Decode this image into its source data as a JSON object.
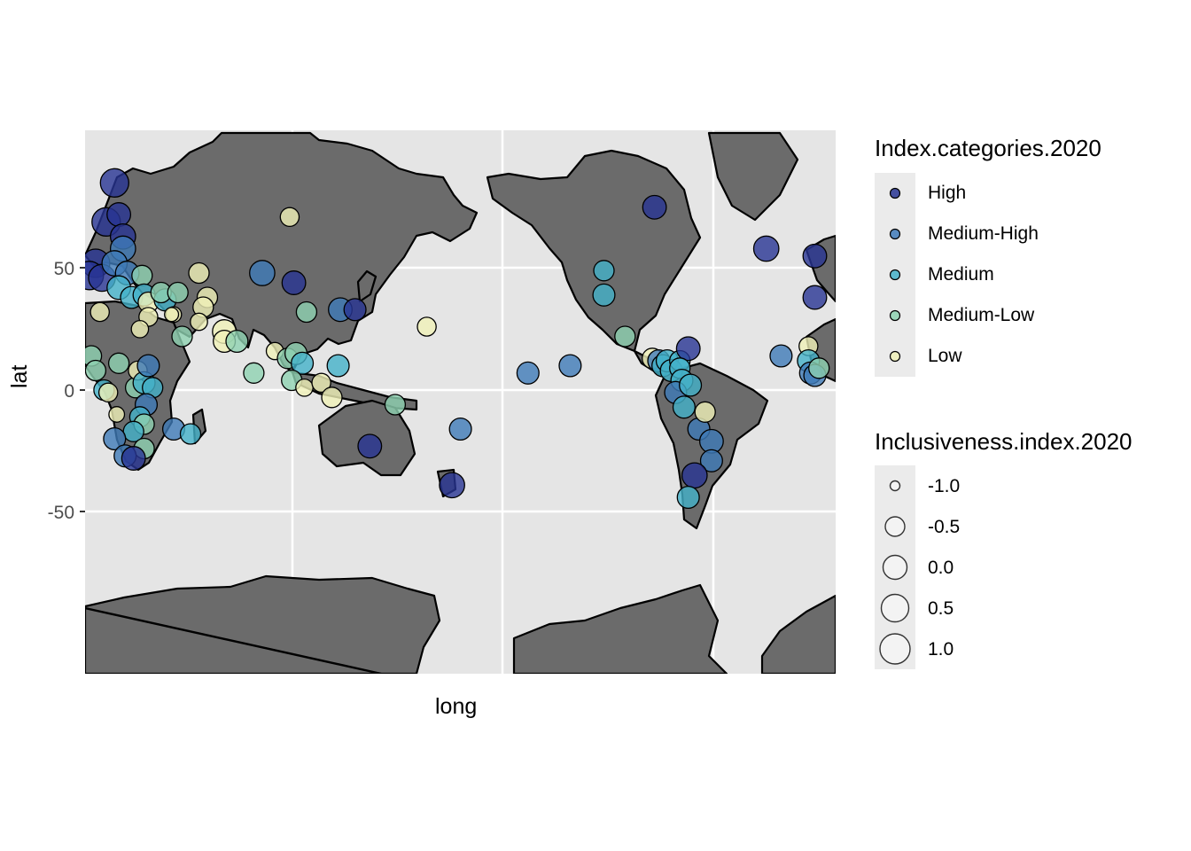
{
  "axes": {
    "x_label": "long",
    "y_label": "lat",
    "y_ticks": [
      "50",
      "0",
      "-50"
    ]
  },
  "colors": {
    "panel": "#e5e5e5",
    "gridline": "#ffffff",
    "land": "#6b6b6b",
    "border": "#000000",
    "High": "#283593",
    "Medium-High": "#3f7ab8",
    "Medium": "#44b2c9",
    "Medium-Low": "#8ed2b2",
    "Low": "#f0f1b8"
  },
  "legend_category": {
    "title": "Index.categories.2020",
    "items": [
      "High",
      "Medium-High",
      "Medium",
      "Medium-Low",
      "Low"
    ]
  },
  "legend_size": {
    "title": "Inclusiveness.index.2020",
    "items": [
      "-1.0",
      "-0.5",
      "0.0",
      "0.5",
      "1.0"
    ]
  },
  "points": [
    {
      "lon": 14,
      "lat": 85,
      "cat": "High",
      "size": 1.0
    },
    {
      "lon": 10,
      "lat": 69,
      "cat": "High",
      "size": 1.0
    },
    {
      "lon": 16,
      "lat": 72,
      "cat": "High",
      "size": 0.7
    },
    {
      "lon": 18,
      "lat": 63,
      "cat": "High",
      "size": 0.8
    },
    {
      "lon": 5,
      "lat": 52,
      "cat": "High",
      "size": 1.0
    },
    {
      "lon": 2,
      "lat": 47,
      "cat": "High",
      "size": 1.0
    },
    {
      "lon": 8,
      "lat": 46,
      "cat": "High",
      "size": 0.9
    },
    {
      "lon": 18,
      "lat": 58,
      "cat": "Medium-High",
      "size": 0.8
    },
    {
      "lon": 14,
      "lat": 52,
      "cat": "Medium-High",
      "size": 0.8
    },
    {
      "lon": 20,
      "lat": 48,
      "cat": "Medium-High",
      "size": 0.7
    },
    {
      "lon": 16,
      "lat": 42,
      "cat": "Medium",
      "size": 0.7
    },
    {
      "lon": 22,
      "lat": 38,
      "cat": "Medium",
      "size": 0.6
    },
    {
      "lon": 27,
      "lat": 47,
      "cat": "Medium-Low",
      "size": 0.5
    },
    {
      "lon": 28,
      "lat": 39,
      "cat": "Medium",
      "size": 0.6
    },
    {
      "lon": 30,
      "lat": 36,
      "cat": "Low",
      "size": 0.5
    },
    {
      "lon": 30,
      "lat": 30,
      "cat": "Low",
      "size": 0.4
    },
    {
      "lon": 26,
      "lat": 25,
      "cat": "Low",
      "size": 0.3
    },
    {
      "lon": 7,
      "lat": 32,
      "cat": "Low",
      "size": 0.4
    },
    {
      "lon": 38,
      "lat": 37,
      "cat": "Medium",
      "size": 0.6
    },
    {
      "lon": 36,
      "lat": 40,
      "cat": "Medium-Low",
      "size": 0.5
    },
    {
      "lon": 44,
      "lat": 40,
      "cat": "Medium-Low",
      "size": 0.5
    },
    {
      "lon": 42,
      "lat": 31,
      "cat": "Low",
      "size": 0.2
    },
    {
      "lon": 46,
      "lat": 22,
      "cat": "Medium-Low",
      "size": 0.5
    },
    {
      "lon": 41,
      "lat": 31,
      "cat": "Low",
      "size": 0.1
    },
    {
      "lon": 54,
      "lat": 48,
      "cat": "Low",
      "size": 0.5
    },
    {
      "lon": 58,
      "lat": 38,
      "cat": "Low",
      "size": 0.5
    },
    {
      "lon": 56,
      "lat": 34,
      "cat": "Low",
      "size": 0.5
    },
    {
      "lon": 54,
      "lat": 28,
      "cat": "Low",
      "size": 0.3
    },
    {
      "lon": 66,
      "lat": 24,
      "cat": "Low",
      "size": 0.7
    },
    {
      "lon": 66,
      "lat": 20,
      "cat": "Low",
      "size": 0.6
    },
    {
      "lon": 72,
      "lat": 20,
      "cat": "Medium-Low",
      "size": 0.6
    },
    {
      "lon": 80,
      "lat": 7,
      "cat": "Medium-Low",
      "size": 0.5
    },
    {
      "lon": 84,
      "lat": 48,
      "cat": "Medium-High",
      "size": 0.8
    },
    {
      "lon": 99,
      "lat": 44,
      "cat": "High",
      "size": 0.7
    },
    {
      "lon": 105,
      "lat": 32,
      "cat": "Medium-Low",
      "size": 0.5
    },
    {
      "lon": 97,
      "lat": 71,
      "cat": "Low",
      "size": 0.4
    },
    {
      "lon": 90,
      "lat": 16,
      "cat": "Low",
      "size": 0.3
    },
    {
      "lon": 96,
      "lat": 13,
      "cat": "Medium-Low",
      "size": 0.5
    },
    {
      "lon": 100,
      "lat": 15,
      "cat": "Medium-Low",
      "size": 0.6
    },
    {
      "lon": 103,
      "lat": 11,
      "cat": "Medium",
      "size": 0.6
    },
    {
      "lon": 98,
      "lat": 4,
      "cat": "Medium-Low",
      "size": 0.5
    },
    {
      "lon": 104,
      "lat": 1,
      "cat": "Low",
      "size": 0.3
    },
    {
      "lon": 112,
      "lat": 3,
      "cat": "Low",
      "size": 0.4
    },
    {
      "lon": 117,
      "lat": -3,
      "cat": "Low",
      "size": 0.5
    },
    {
      "lon": 120,
      "lat": 10,
      "cat": "Medium",
      "size": 0.6
    },
    {
      "lon": 121,
      "lat": 33,
      "cat": "Medium-High",
      "size": 0.7
    },
    {
      "lon": 128,
      "lat": 33,
      "cat": "High",
      "size": 0.6
    },
    {
      "lon": 135,
      "lat": -23,
      "cat": "High",
      "size": 0.7
    },
    {
      "lon": 147,
      "lat": -6,
      "cat": "Medium-Low",
      "size": 0.5
    },
    {
      "lon": 162,
      "lat": 26,
      "cat": "Low",
      "size": 0.4
    },
    {
      "lon": 174,
      "lat": -39,
      "cat": "High",
      "size": 0.8
    },
    {
      "lon": 178,
      "lat": -16,
      "cat": "Medium-High",
      "size": 0.6
    },
    {
      "lon": 210,
      "lat": 7,
      "cat": "Medium-High",
      "size": 0.6
    },
    {
      "lon": 230,
      "lat": 10,
      "cat": "Medium-High",
      "size": 0.6
    },
    {
      "lon": 246,
      "lat": 49,
      "cat": "Medium",
      "size": 0.5
    },
    {
      "lon": 246,
      "lat": 39,
      "cat": "Medium",
      "size": 0.6
    },
    {
      "lon": 256,
      "lat": 22,
      "cat": "Medium-Low",
      "size": 0.5
    },
    {
      "lon": 270,
      "lat": 75,
      "cat": "High",
      "size": 0.7
    },
    {
      "lon": 269,
      "lat": 13,
      "cat": "Low",
      "size": 0.5
    },
    {
      "lon": 272,
      "lat": 12,
      "cat": "Medium-High",
      "size": 0.6
    },
    {
      "lon": 274,
      "lat": 10,
      "cat": "Medium",
      "size": 0.6
    },
    {
      "lon": 276,
      "lat": 12,
      "cat": "Medium",
      "size": 0.6
    },
    {
      "lon": 278,
      "lat": 8,
      "cat": "Medium",
      "size": 0.6
    },
    {
      "lon": 282,
      "lat": 12,
      "cat": "Medium",
      "size": 0.5
    },
    {
      "lon": 286,
      "lat": 17,
      "cat": "High",
      "size": 0.7
    },
    {
      "lon": 282,
      "lat": 9,
      "cat": "Medium",
      "size": 0.5
    },
    {
      "lon": 283,
      "lat": 4,
      "cat": "Medium",
      "size": 0.6
    },
    {
      "lon": 280,
      "lat": -1,
      "cat": "Medium-High",
      "size": 0.6
    },
    {
      "lon": 284,
      "lat": -7,
      "cat": "Medium",
      "size": 0.6
    },
    {
      "lon": 287,
      "lat": 2,
      "cat": "Medium",
      "size": 0.6
    },
    {
      "lon": 291,
      "lat": -16,
      "cat": "Medium-High",
      "size": 0.6
    },
    {
      "lon": 294,
      "lat": -9,
      "cat": "Low",
      "size": 0.5
    },
    {
      "lon": 297,
      "lat": -21,
      "cat": "Medium-High",
      "size": 0.7
    },
    {
      "lon": 297,
      "lat": -29,
      "cat": "Medium-High",
      "size": 0.6
    },
    {
      "lon": 289,
      "lat": -35,
      "cat": "High",
      "size": 0.8
    },
    {
      "lon": 286,
      "lat": -44,
      "cat": "Medium",
      "size": 0.6
    },
    {
      "lon": 323,
      "lat": 58,
      "cat": "High",
      "size": 0.8
    },
    {
      "lon": 330,
      "lat": 14,
      "cat": "Medium-High",
      "size": 0.6
    },
    {
      "lon": 346,
      "lat": 55,
      "cat": "High",
      "size": 0.7
    },
    {
      "lon": 346,
      "lat": 38,
      "cat": "High",
      "size": 0.7
    },
    {
      "lon": 343,
      "lat": 18,
      "cat": "Low",
      "size": 0.4
    },
    {
      "lon": 343,
      "lat": 12,
      "cat": "Medium",
      "size": 0.6
    },
    {
      "lon": 344,
      "lat": 7,
      "cat": "Medium-High",
      "size": 0.6
    },
    {
      "lon": 346,
      "lat": 6,
      "cat": "Medium-High",
      "size": 0.6
    },
    {
      "lon": 348,
      "lat": 9,
      "cat": "Medium-Low",
      "size": 0.5
    },
    {
      "lon": 3,
      "lat": 14,
      "cat": "Medium-Low",
      "size": 0.5
    },
    {
      "lon": 5,
      "lat": 8,
      "cat": "Medium-Low",
      "size": 0.5
    },
    {
      "lon": 9,
      "lat": 0,
      "cat": "Medium",
      "size": 0.5
    },
    {
      "lon": 11,
      "lat": -1,
      "cat": "Low",
      "size": 0.4
    },
    {
      "lon": 16,
      "lat": 11,
      "cat": "Medium-Low",
      "size": 0.5
    },
    {
      "lon": 15,
      "lat": -10,
      "cat": "Low",
      "size": 0.2
    },
    {
      "lon": 24,
      "lat": 1,
      "cat": "Medium-Low",
      "size": 0.5
    },
    {
      "lon": 25,
      "lat": 8,
      "cat": "Low",
      "size": 0.4
    },
    {
      "lon": 28,
      "lat": 3,
      "cat": "Medium",
      "size": 0.6
    },
    {
      "lon": 30,
      "lat": 10,
      "cat": "Medium-High",
      "size": 0.6
    },
    {
      "lon": 32,
      "lat": 1,
      "cat": "Medium",
      "size": 0.5
    },
    {
      "lon": 29,
      "lat": -6,
      "cat": "Medium-High",
      "size": 0.6
    },
    {
      "lon": 26,
      "lat": -11,
      "cat": "Medium",
      "size": 0.5
    },
    {
      "lon": 28,
      "lat": -14,
      "cat": "Medium-Low",
      "size": 0.5
    },
    {
      "lon": 23,
      "lat": -17,
      "cat": "Medium",
      "size": 0.5
    },
    {
      "lon": 28,
      "lat": -24,
      "cat": "Medium-Low",
      "size": 0.5
    },
    {
      "lon": 14,
      "lat": -20,
      "cat": "Medium-High",
      "size": 0.6
    },
    {
      "lon": 19,
      "lat": -27,
      "cat": "Medium-High",
      "size": 0.6
    },
    {
      "lon": 23,
      "lat": -28,
      "cat": "High",
      "size": 0.7
    },
    {
      "lon": 42,
      "lat": -16,
      "cat": "Medium-High",
      "size": 0.6
    },
    {
      "lon": 50,
      "lat": -18,
      "cat": "Medium",
      "size": 0.5
    }
  ]
}
